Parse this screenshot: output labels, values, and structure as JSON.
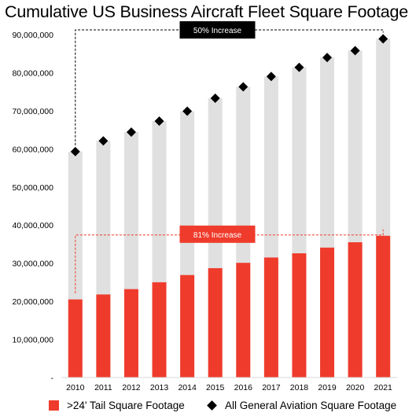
{
  "chart_data": {
    "type": "bar",
    "title": "Cumulative US Business Aircraft Fleet Square Footage",
    "categories": [
      "2010",
      "2011",
      "2012",
      "2013",
      "2014",
      "2015",
      "2016",
      "2017",
      "2018",
      "2019",
      "2020",
      "2021"
    ],
    "ylim": [
      0,
      90000000
    ],
    "yticks": [
      0,
      10000000,
      20000000,
      30000000,
      40000000,
      50000000,
      60000000,
      70000000,
      80000000,
      90000000
    ],
    "ytick_labels": [
      "-",
      "10,000,000",
      "20,000,000",
      "30,000,000",
      "40,000,000",
      "50,000,000",
      "60,000,000",
      "70,000,000",
      "80,000,000",
      "90,000,000"
    ],
    "grid": false,
    "series": [
      {
        "name": ">24' Tail Square Footage",
        "kind": "bar",
        "color": "#ef3b2c",
        "values": [
          20500000,
          21800000,
          23200000,
          25000000,
          26900000,
          28700000,
          30100000,
          31500000,
          32600000,
          34100000,
          35500000,
          37200000
        ]
      },
      {
        "name": "All General Aviation Square Footage",
        "kind": "bar-background+marker",
        "color": "#000000",
        "bar_color": "#e0e0e0",
        "values": [
          59300000,
          62100000,
          64400000,
          67300000,
          69900000,
          73300000,
          76300000,
          79000000,
          81400000,
          84000000,
          85800000,
          88900000
        ]
      }
    ],
    "annotations": [
      {
        "text": "50% Increase",
        "level": 88900000,
        "from": "2010",
        "to": "2021",
        "style": "black",
        "box_color": "#000000",
        "text_color": "#ffffff"
      },
      {
        "text": "81% Increase",
        "level": 37200000,
        "from": "2010",
        "to": "2021",
        "style": "red",
        "box_color": "#ef3b2c",
        "text_color": "#ffffff"
      }
    ],
    "legend": {
      "position": "bottom",
      "items": [
        ">24' Tail Square Footage",
        "All General Aviation Square Footage"
      ]
    }
  }
}
